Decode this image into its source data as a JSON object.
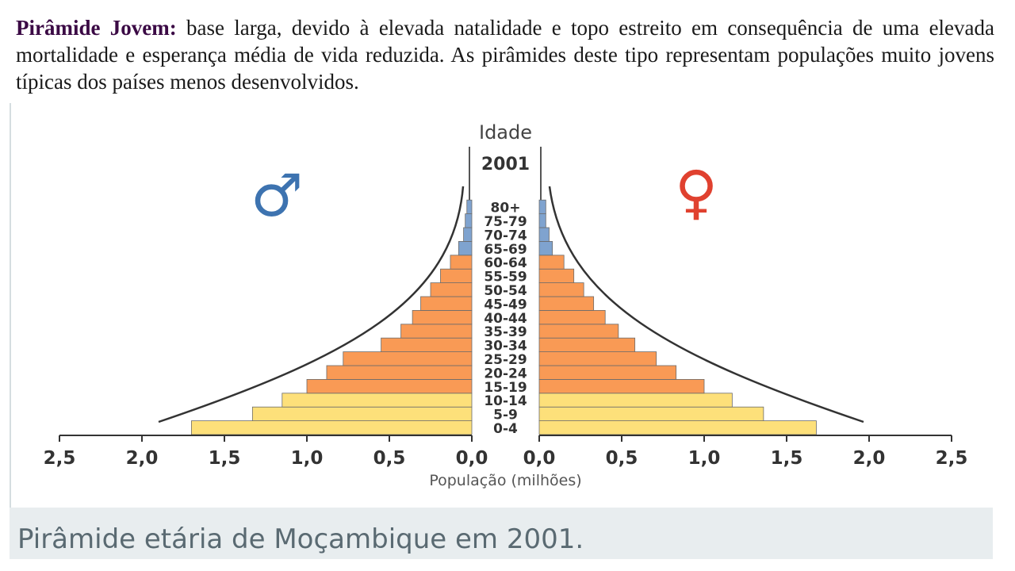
{
  "intro": {
    "heading": "Pirâmide Jovem:",
    "body": " base larga, devido à elevada natalidade e topo estreito em consequência de uma elevada mortalidade e esperança média de vida reduzida. As pirâmides deste tipo representam populações muito jovens típicas dos países menos desenvolvidos."
  },
  "caption": "Pirâmide etária de Moçambique em 2001.",
  "chart_data": {
    "type": "bar",
    "title": "Idade",
    "year": "2001",
    "xlabel": "População (milhões)",
    "male_symbol": "♂",
    "female_symbol": "♀",
    "categories": [
      "0-4",
      "5-9",
      "10-14",
      "15-19",
      "20-24",
      "25-29",
      "30-34",
      "35-39",
      "40-44",
      "45-49",
      "50-54",
      "55-59",
      "60-64",
      "65-69",
      "70-74",
      "75-79",
      "80+"
    ],
    "series": [
      {
        "values": [
          1.7,
          1.33,
          1.15,
          1.0,
          0.88,
          0.78,
          0.55,
          0.43,
          0.36,
          0.31,
          0.25,
          0.19,
          0.13,
          0.08,
          0.05,
          0.04,
          0.03
        ]
      },
      {
        "values": [
          1.68,
          1.36,
          1.17,
          1.0,
          0.83,
          0.71,
          0.58,
          0.48,
          0.4,
          0.33,
          0.27,
          0.21,
          0.15,
          0.08,
          0.06,
          0.04,
          0.04
        ]
      }
    ],
    "xticks_left": [
      "2,5",
      "2,0",
      "1,5",
      "1,0",
      "0,5",
      "0,0"
    ],
    "xticks_right": [
      "0,0",
      "0,5",
      "1,0",
      "1,5",
      "2,0",
      "2,5"
    ],
    "xlim": [
      0,
      2.5
    ],
    "colors": {
      "young": "#fde07a",
      "adult": "#f99a55",
      "old": "#7fa3cf",
      "bar_stroke": "#6b6b6b",
      "axis": "#333333",
      "male_symbol": "#3d73b0",
      "female_symbol": "#e0412f"
    }
  }
}
